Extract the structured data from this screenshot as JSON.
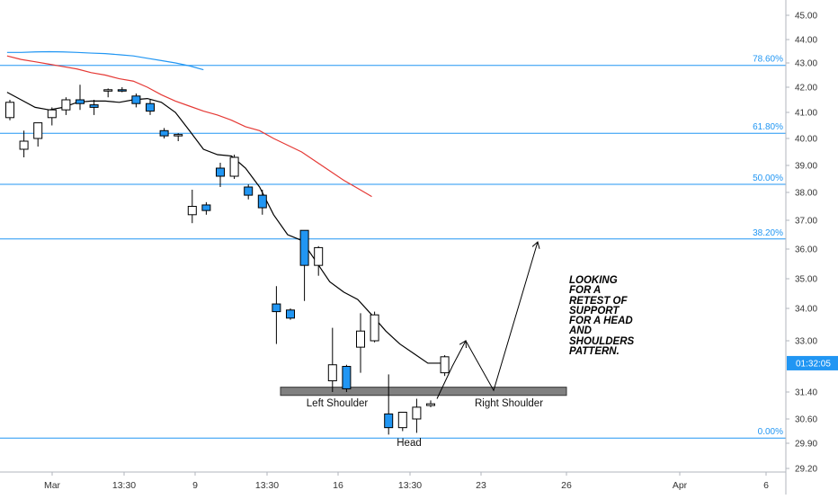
{
  "chart_data": {
    "type": "candlestick",
    "title": "",
    "ylim": [
      29.0,
      45.5
    ],
    "x_ticks": [
      "Mar",
      "13:30",
      "9",
      "13:30",
      "16",
      "13:30",
      "23",
      "26",
      "Apr",
      "6"
    ],
    "y_ticks": [
      "45.00",
      "44.00",
      "43.00",
      "42.00",
      "41.00",
      "40.00",
      "39.00",
      "38.00",
      "37.00",
      "36.00",
      "35.00",
      "34.00",
      "33.00",
      "31.40",
      "30.60",
      "29.90",
      "29.20"
    ],
    "y_tick_values": [
      45.0,
      44.0,
      43.0,
      42.0,
      41.0,
      40.0,
      39.0,
      38.0,
      37.0,
      36.0,
      35.0,
      34.0,
      33.0,
      31.4,
      30.6,
      29.9,
      29.2
    ],
    "current_label": "01:32:05",
    "current_value": 32.3,
    "candles": [
      {
        "o": 40.8,
        "h": 41.5,
        "l": 40.7,
        "c": 41.4
      },
      {
        "o": 39.6,
        "h": 40.3,
        "l": 39.3,
        "c": 39.9
      },
      {
        "o": 40.0,
        "h": 40.6,
        "l": 39.7,
        "c": 40.6
      },
      {
        "o": 40.8,
        "h": 41.2,
        "l": 40.5,
        "c": 41.1
      },
      {
        "o": 41.1,
        "h": 41.6,
        "l": 40.9,
        "c": 41.5
      },
      {
        "o": 41.5,
        "h": 42.1,
        "l": 41.1,
        "c": 41.35
      },
      {
        "o": 41.3,
        "h": 41.5,
        "l": 40.9,
        "c": 41.2
      },
      {
        "o": 41.85,
        "h": 41.95,
        "l": 41.6,
        "c": 41.9
      },
      {
        "o": 41.9,
        "h": 42.0,
        "l": 41.8,
        "c": 41.85
      },
      {
        "o": 41.65,
        "h": 41.75,
        "l": 41.2,
        "c": 41.35
      },
      {
        "o": 41.35,
        "h": 41.5,
        "l": 40.9,
        "c": 41.05
      },
      {
        "o": 40.3,
        "h": 40.4,
        "l": 40.0,
        "c": 40.1
      },
      {
        "o": 40.1,
        "h": 40.2,
        "l": 39.9,
        "c": 40.15
      },
      {
        "o": 37.2,
        "h": 38.1,
        "l": 36.9,
        "c": 37.5
      },
      {
        "o": 37.55,
        "h": 37.65,
        "l": 37.2,
        "c": 37.35
      },
      {
        "o": 38.9,
        "h": 39.1,
        "l": 38.2,
        "c": 38.6
      },
      {
        "o": 38.6,
        "h": 39.4,
        "l": 38.5,
        "c": 39.3
      },
      {
        "o": 38.2,
        "h": 38.3,
        "l": 37.75,
        "c": 37.9
      },
      {
        "o": 37.9,
        "h": 38.1,
        "l": 37.2,
        "c": 37.45
      },
      {
        "o": 34.15,
        "h": 34.75,
        "l": 32.9,
        "c": 33.9
      },
      {
        "o": 33.95,
        "h": 34.0,
        "l": 33.65,
        "c": 33.7
      },
      {
        "o": 36.65,
        "h": 36.65,
        "l": 34.25,
        "c": 35.45
      },
      {
        "o": 35.45,
        "h": 36.1,
        "l": 35.1,
        "c": 36.05
      },
      {
        "o": 31.75,
        "h": 33.4,
        "l": 31.4,
        "c": 32.25
      },
      {
        "o": 32.2,
        "h": 32.25,
        "l": 31.4,
        "c": 31.5
      },
      {
        "o": 32.8,
        "h": 33.85,
        "l": 32.0,
        "c": 33.3
      },
      {
        "o": 33.0,
        "h": 33.9,
        "l": 32.95,
        "c": 33.8
      },
      {
        "o": 30.75,
        "h": 31.95,
        "l": 30.15,
        "c": 30.35
      },
      {
        "o": 30.35,
        "h": 30.8,
        "l": 30.25,
        "c": 30.8
      },
      {
        "o": 30.6,
        "h": 31.2,
        "l": 30.2,
        "c": 30.95
      },
      {
        "o": 31.0,
        "h": 31.15,
        "l": 30.95,
        "c": 31.05
      },
      {
        "o": 32.0,
        "h": 32.55,
        "l": 31.9,
        "c": 32.5
      }
    ],
    "series": [
      {
        "color": "#000000",
        "values": [
          41.8,
          41.5,
          41.2,
          41.1,
          41.2,
          41.4,
          41.45,
          41.45,
          41.4,
          41.5,
          41.55,
          41.4,
          41.0,
          40.3,
          39.6,
          39.4,
          39.35,
          38.9,
          38.2,
          37.2,
          36.5,
          36.3,
          35.6,
          34.9,
          34.55,
          34.3,
          33.8,
          33.3,
          32.9,
          32.6,
          32.3,
          32.3
        ]
      },
      {
        "color": "#e53935",
        "values": [
          43.3,
          43.15,
          43.05,
          42.95,
          42.85,
          42.75,
          42.6,
          42.5,
          42.35,
          42.25,
          42.0,
          41.7,
          41.45,
          41.25,
          41.05,
          40.9,
          40.7,
          40.45,
          40.3,
          40.0,
          39.75,
          39.5,
          39.15,
          38.8,
          38.45,
          38.15,
          37.85
        ]
      },
      {
        "color": "#2196f3",
        "values": [
          43.45,
          43.45,
          43.47,
          43.48,
          43.47,
          43.45,
          43.42,
          43.4,
          43.35,
          43.3,
          43.2,
          43.1,
          43.0,
          42.88,
          42.72
        ]
      }
    ],
    "fib_levels": [
      {
        "label": "78.60%",
        "value": 42.9
      },
      {
        "label": "61.80%",
        "value": 40.2
      },
      {
        "label": "50.00%",
        "value": 38.3
      },
      {
        "label": "38.20%",
        "value": 36.35
      },
      {
        "label": "0.00%",
        "value": 30.05
      }
    ],
    "support_zone": {
      "top": 31.55,
      "bottom": 31.3
    },
    "annotations": {
      "left_shoulder": "Left Shoulder",
      "head": "Head",
      "right_shoulder": "Right Shoulder",
      "note": [
        "LOOKING",
        "FOR A",
        "RETEST OF",
        "SUPPORT",
        "FOR A HEAD",
        "AND",
        "SHOULDERS",
        "PATTERN."
      ]
    },
    "projection": [
      [
        32.2,
        33.0
      ],
      [
        31.45,
        36.25
      ]
    ],
    "colors": {
      "bull_fill": "#ffffff",
      "bear_fill": "#2196f3",
      "candle_border": "#000000",
      "fib_line": "#2196f3",
      "fib_label": "#2196f3",
      "zone": "#808080",
      "badge": "#2196f3"
    }
  }
}
